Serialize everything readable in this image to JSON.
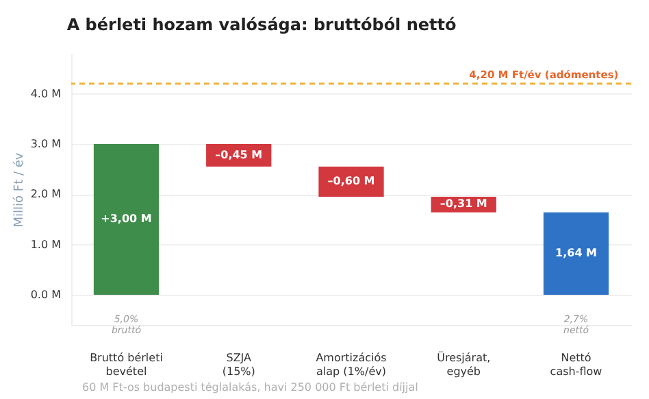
{
  "chart_data": {
    "type": "bar",
    "title": "A bérleti hozam valósága: bruttóból nettó",
    "ylabel": "Millió Ft / év",
    "categories": [
      "Bruttó bérleti\nbevétel",
      "SZJA\n(15%)",
      "Amortizációs\nalap (1%/év)",
      "Üresjárat,\negyéb",
      "Nettó\ncash-flow"
    ],
    "values": [
      3.0,
      -0.45,
      -0.6,
      -0.31,
      1.64
    ],
    "base": [
      0,
      3.0,
      2.55,
      1.95,
      0
    ],
    "colors": [
      "#3f8d4b",
      "#d2383e",
      "#d2383e",
      "#d2383e",
      "#2f73c6"
    ],
    "value_labels": [
      "+3,00 M",
      "–0,45 M",
      "–0,60 M",
      "–0,31 M",
      "1,64 M"
    ],
    "ylim": [
      -0.6,
      4.8
    ],
    "yticks": [
      {
        "value": 0,
        "label": "0.0 M"
      },
      {
        "value": 1,
        "label": "1.0 M"
      },
      {
        "value": 2,
        "label": "2.0 M"
      },
      {
        "value": 3,
        "label": "3.0 M"
      },
      {
        "value": 4,
        "label": "4.0 M"
      }
    ],
    "ref_lines": [
      {
        "axis": "y",
        "value": 4.2,
        "label": "4,20 M Ft/év (adómentes)",
        "color": "#f2b33d",
        "line_style": "dashed"
      }
    ],
    "annotations": [
      "5,0%\nbruttó",
      "2,7%\nnettó",
      "60 M Ft-os budapesti téglalakás, havi 250 000 Ft bérleti díjjal"
    ],
    "grid": "y"
  }
}
